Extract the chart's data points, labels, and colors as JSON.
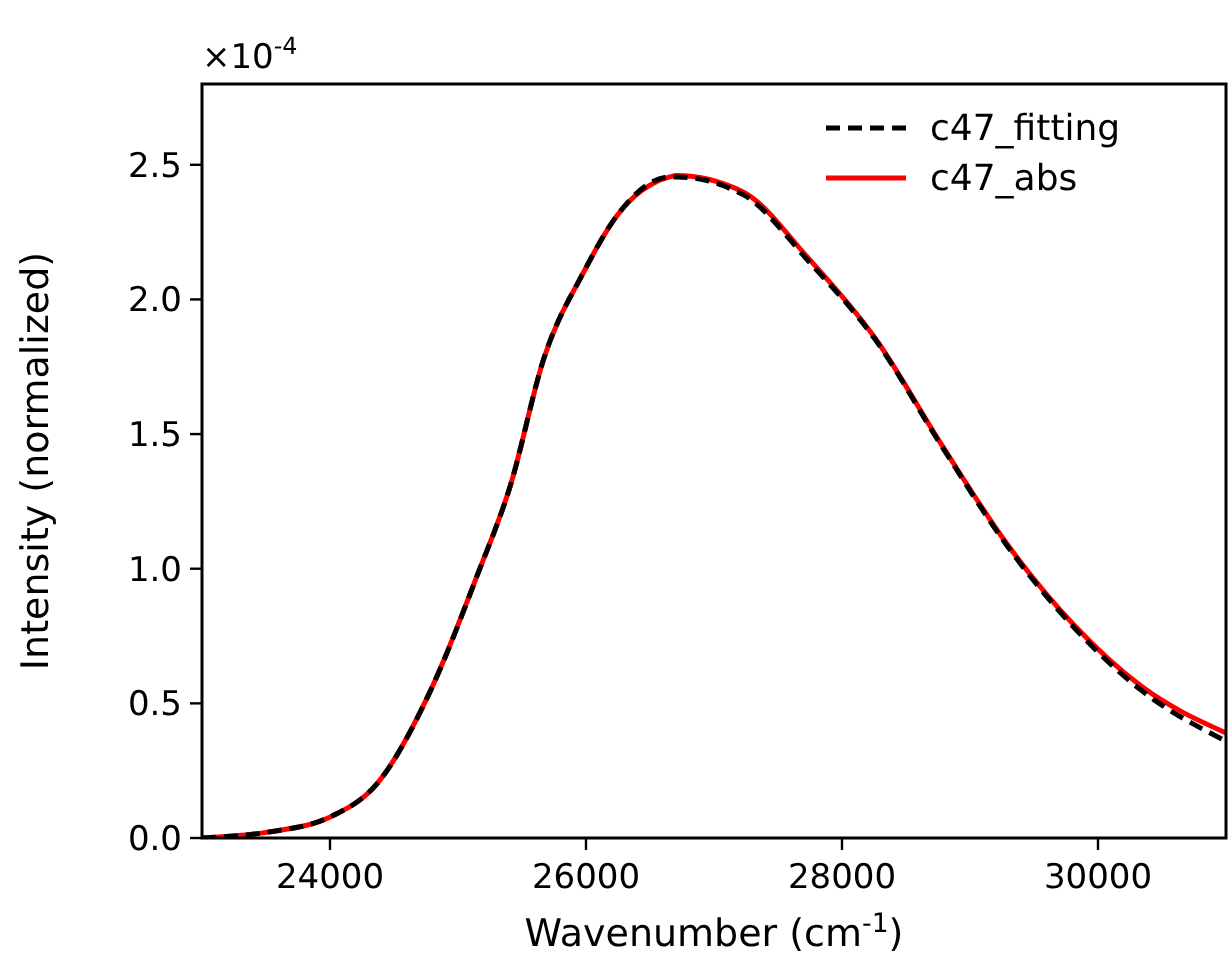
{
  "chart_data": {
    "type": "line",
    "xlabel": "Wavenumber (cm$^{-1}$)",
    "ylabel": "Intensity (normalized)",
    "annotations": [
      "×10$^{-4}$"
    ],
    "xlim": [
      23000,
      31000
    ],
    "xticks": [
      24000,
      26000,
      28000,
      30000
    ],
    "ylim": [
      0,
      2.8
    ],
    "yticks": [
      {
        "value": 0,
        "label": "0.0"
      },
      {
        "value": 0.5,
        "label": "0.5"
      },
      {
        "value": 1,
        "label": "1.0"
      },
      {
        "value": 1.5,
        "label": "1.5"
      },
      {
        "value": 2,
        "label": "2.0"
      },
      {
        "value": 2.5,
        "label": "2.5"
      }
    ],
    "legend": "top right",
    "grid": false,
    "series": [
      {
        "name": "c47_fitting",
        "color": "#000000",
        "line_style": "dashed",
        "x": [
          23000,
          23490,
          24010,
          24373,
          24788,
          25150,
          25410,
          25670,
          25980,
          26240,
          26655,
          26706,
          27224,
          27743,
          28261,
          28779,
          29298,
          29816,
          30334,
          31000
        ],
        "values": [
          0,
          0.02,
          0.08,
          0.205,
          0.55,
          0.975,
          1.31,
          1.78,
          2.1,
          2.31,
          2.455,
          2.455,
          2.39,
          2.14,
          1.85,
          1.455,
          1.08,
          0.78,
          0.55,
          0.36
        ]
      },
      {
        "name": "c47_abs",
        "color": "#ff0000",
        "line_style": "solid",
        "x": [
          23000,
          23490,
          24010,
          24373,
          24788,
          25150,
          25410,
          25670,
          25980,
          26240,
          26655,
          26706,
          27224,
          27743,
          28261,
          28779,
          29298,
          29816,
          30334,
          31000
        ],
        "values": [
          0,
          0.02,
          0.08,
          0.205,
          0.55,
          0.975,
          1.31,
          1.78,
          2.1,
          2.31,
          2.455,
          2.46,
          2.4,
          2.15,
          1.855,
          1.46,
          1.086,
          0.789,
          0.565,
          0.39
        ]
      }
    ]
  }
}
